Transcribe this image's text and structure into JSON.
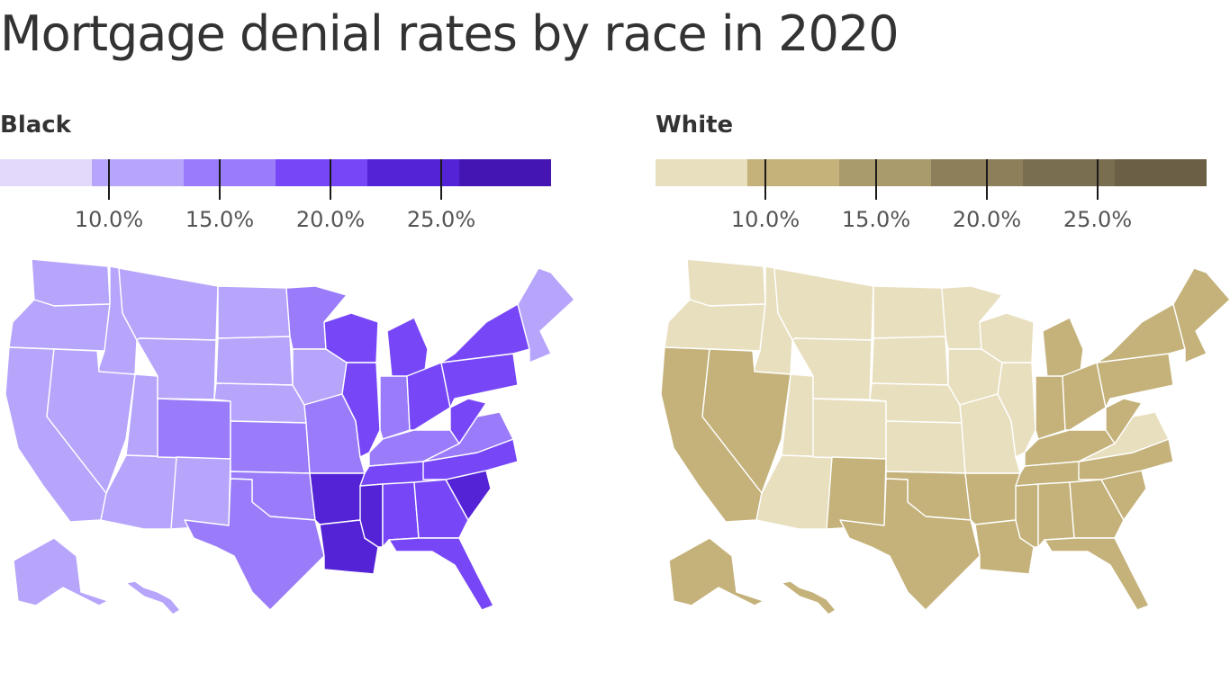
{
  "title": "Mortgage denial rates by race in 2020",
  "legend_ticks": [
    "10.0%",
    "15.0%",
    "20.0%",
    "25.0%"
  ],
  "panels": [
    {
      "id": "black",
      "label": "Black",
      "bin_colors": [
        "#e2d9fb",
        "#b7a4fb",
        "#9a7cfa",
        "#7747f7",
        "#5523d6",
        "#4415b3"
      ],
      "states": {
        "WA": 1,
        "OR": 1,
        "CA": 1,
        "ID": 1,
        "NV": 1,
        "UT": 1,
        "AZ": 1,
        "MT": 1,
        "WY": 1,
        "CO": 2,
        "NM": 1,
        "ND": 1,
        "SD": 1,
        "NE": 1,
        "KS": 2,
        "OK": 2,
        "TX": 2,
        "MN": 2,
        "IA": 1,
        "MO": 2,
        "AR": 4,
        "LA": 4,
        "WI": 3,
        "IL": 3,
        "MI": 3,
        "IN": 2,
        "OH": 3,
        "KY": 2,
        "TN": 3,
        "MS": 4,
        "AL": 3,
        "GA": 3,
        "FL": 3,
        "SC": 4,
        "NC": 3,
        "VA": 2,
        "WV": 3,
        "PA": 3,
        "NY": 3,
        "NE_US": 1,
        "AK": 1,
        "HI": 1
      }
    },
    {
      "id": "white",
      "label": "White",
      "bin_colors": [
        "#e8dfbf",
        "#c4b27a",
        "#a99b6b",
        "#8c7f59",
        "#7a6e50",
        "#6b6046"
      ],
      "states": {
        "WA": 0,
        "OR": 0,
        "CA": 1,
        "ID": 0,
        "NV": 1,
        "UT": 0,
        "AZ": 0,
        "MT": 0,
        "WY": 0,
        "CO": 0,
        "NM": 1,
        "ND": 0,
        "SD": 0,
        "NE": 0,
        "KS": 0,
        "OK": 1,
        "TX": 1,
        "MN": 0,
        "IA": 0,
        "MO": 0,
        "AR": 1,
        "LA": 1,
        "WI": 0,
        "IL": 0,
        "MI": 1,
        "IN": 1,
        "OH": 1,
        "KY": 1,
        "TN": 1,
        "MS": 1,
        "AL": 1,
        "GA": 1,
        "FL": 1,
        "SC": 1,
        "NC": 1,
        "VA": 0,
        "WV": 1,
        "PA": 1,
        "NY": 1,
        "NE_US": 1,
        "AK": 1,
        "HI": 1
      }
    }
  ]
}
